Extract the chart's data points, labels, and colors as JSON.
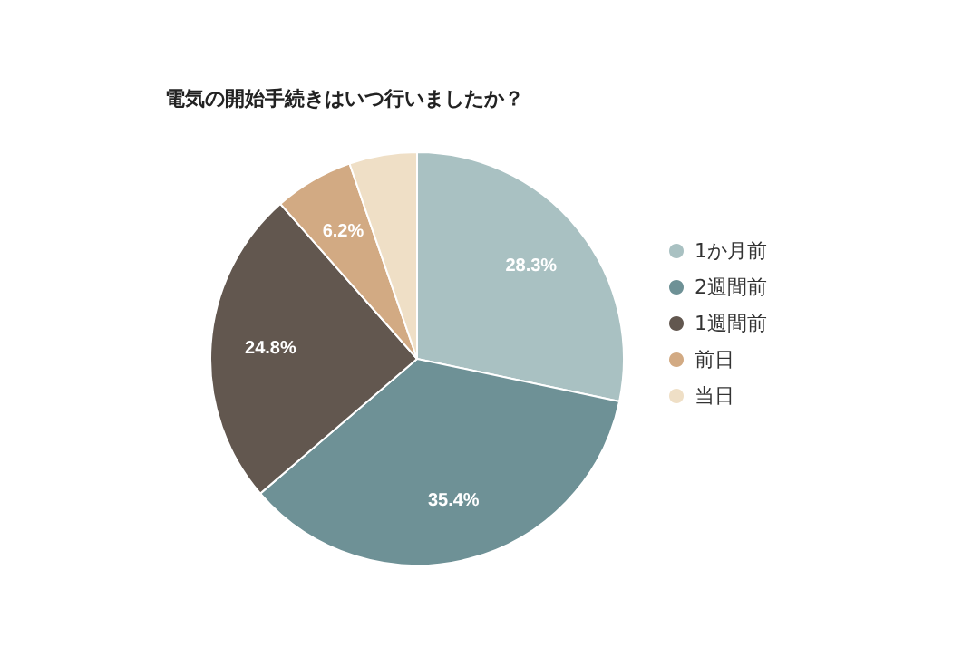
{
  "chart_data": {
    "type": "pie",
    "title": "電気の開始手続きはいつ行いましたか？",
    "categories": [
      "1か月前",
      "2週間前",
      "1週間前",
      "前日",
      "当日"
    ],
    "values": [
      28.3,
      35.4,
      24.8,
      6.2,
      5.3
    ],
    "value_labels": [
      "28.3%",
      "35.4%",
      "24.8%",
      "6.2%",
      null
    ],
    "colors": [
      "#a9c1c2",
      "#6e9196",
      "#62574f",
      "#d2aa83",
      "#efdfc6"
    ],
    "legend": "right"
  }
}
